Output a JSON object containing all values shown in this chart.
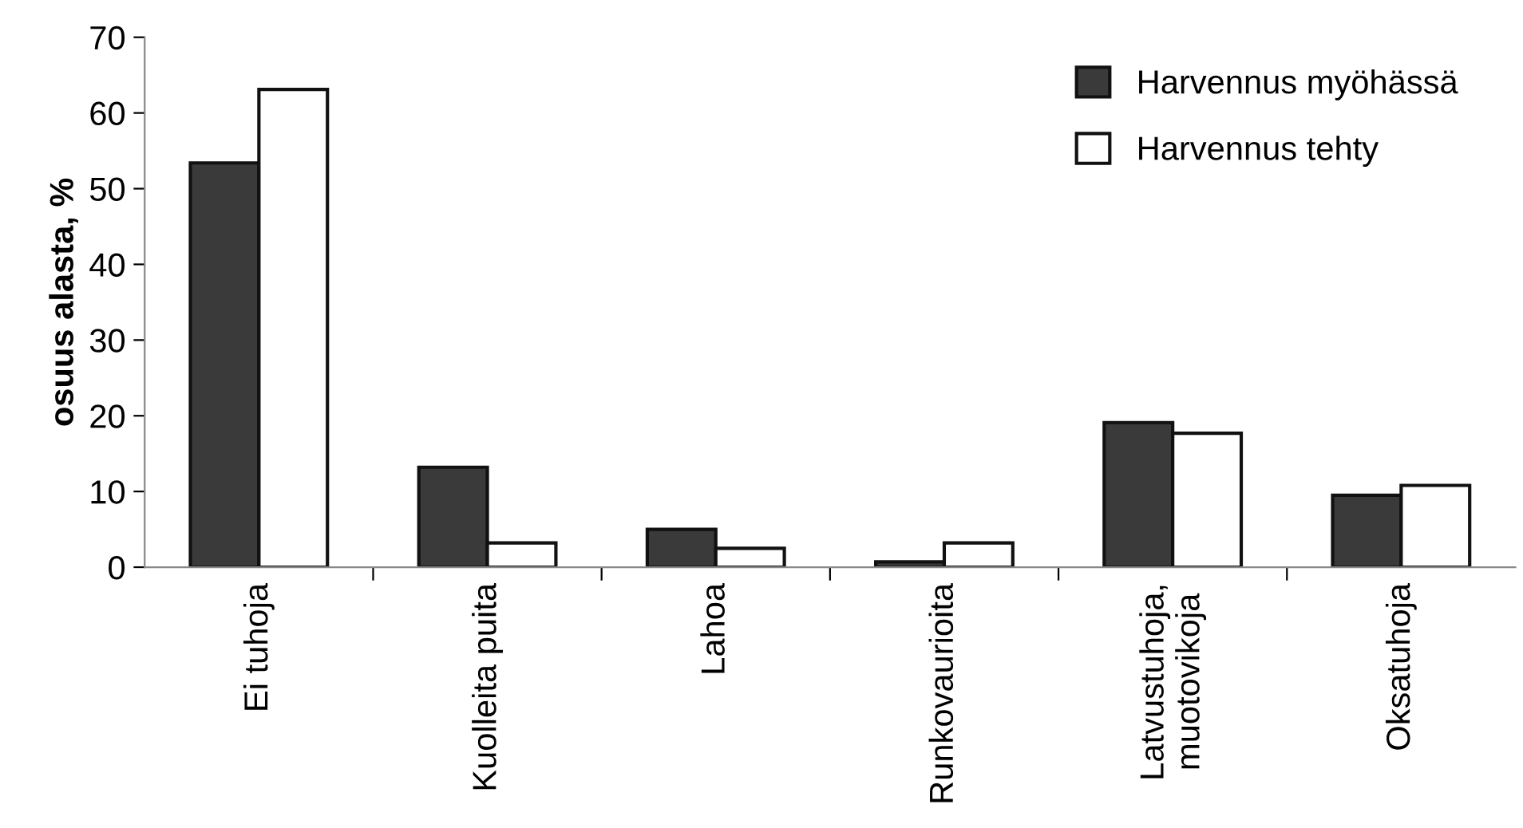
{
  "chart_data": {
    "type": "bar",
    "ylabel": "osuus alasta, %",
    "categories": [
      "Ei tuhoja",
      "Kuolleita puita",
      "Lahoa",
      "Runkovaurioita",
      "Latvustuhoja,\nmuotovikoja",
      "Oksatuhoja"
    ],
    "series": [
      {
        "name": "Harvennus myöhässä",
        "color": "#3a3a3a",
        "values": [
          53.4,
          13.2,
          5.0,
          0.7,
          19.1,
          9.5
        ]
      },
      {
        "name": "Harvennus tehty",
        "color": "#ffffff",
        "values": [
          63.1,
          3.2,
          2.5,
          3.2,
          17.7,
          10.8
        ]
      }
    ],
    "ylim": [
      0,
      70
    ],
    "yticks": [
      0,
      10,
      20,
      30,
      40,
      50,
      60,
      70
    ],
    "grid": false,
    "legend": "top right"
  }
}
